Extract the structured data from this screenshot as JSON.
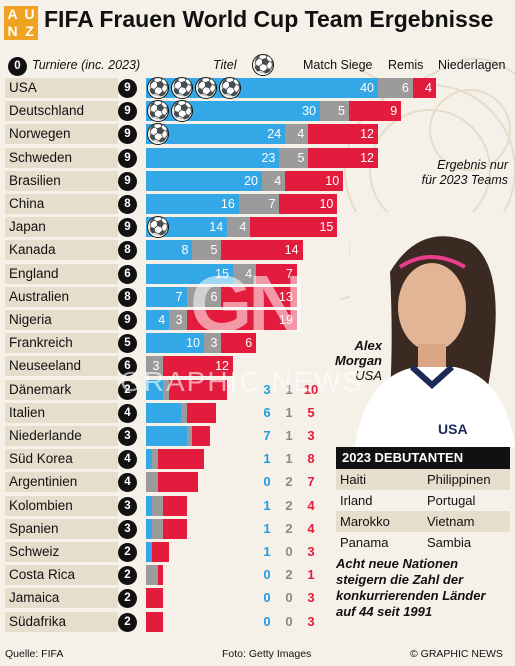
{
  "header": {
    "logo_letters": [
      "A",
      "U",
      "N",
      "Z"
    ],
    "title": "FIFA Frauen World Cup Team Ergebnisse"
  },
  "legend": {
    "tournaments_label": "Turniere (inc. 2023)",
    "tournaments_badge": "0",
    "titles_label": "Titel",
    "wins_label": "Match Siege",
    "draws_label": "Remis",
    "losses_label": "Niederlagen",
    "note_2023": "Ergebnis nur für 2023 Teams"
  },
  "colors": {
    "wins": "#34a8e6",
    "draws": "#9b9b9b",
    "losses": "#e31c3d"
  },
  "chart_data": {
    "type": "bar",
    "stacked": true,
    "orientation": "horizontal",
    "categories": [
      "USA",
      "Deutschland",
      "Norwegen",
      "Schweden",
      "Brasilien",
      "China",
      "Japan",
      "Kanada",
      "England",
      "Australien",
      "Nigeria",
      "Frankreich",
      "Neuseeland",
      "Dänemark",
      "Italien",
      "Niederlande",
      "Süd Korea",
      "Argentinien",
      "Kolombien",
      "Spanien",
      "Schweiz",
      "Costa Rica",
      "Jamaica",
      "Südafrika"
    ],
    "tournaments": [
      9,
      9,
      9,
      9,
      9,
      8,
      9,
      8,
      6,
      8,
      9,
      5,
      6,
      2,
      4,
      3,
      4,
      4,
      3,
      3,
      2,
      2,
      2,
      2
    ],
    "titles": [
      4,
      2,
      1,
      0,
      0,
      0,
      1,
      0,
      0,
      0,
      0,
      0,
      0,
      0,
      0,
      0,
      0,
      0,
      0,
      0,
      0,
      0,
      0,
      0
    ],
    "series": [
      {
        "name": "Match Siege",
        "values": [
          40,
          30,
          24,
          23,
          20,
          16,
          14,
          8,
          15,
          7,
          4,
          10,
          0,
          3,
          6,
          7,
          1,
          0,
          1,
          1,
          1,
          0,
          0,
          0
        ]
      },
      {
        "name": "Remis",
        "values": [
          6,
          5,
          4,
          5,
          4,
          7,
          4,
          5,
          4,
          6,
          3,
          3,
          3,
          1,
          1,
          1,
          1,
          2,
          2,
          2,
          0,
          2,
          0,
          0
        ]
      },
      {
        "name": "Niederlagen",
        "values": [
          4,
          9,
          12,
          12,
          10,
          10,
          15,
          14,
          7,
          13,
          19,
          6,
          12,
          10,
          5,
          3,
          8,
          7,
          4,
          4,
          3,
          1,
          3,
          3
        ]
      }
    ]
  },
  "photo": {
    "name": "Alex Morgan",
    "country": "USA",
    "jersey_text": "USA"
  },
  "debutants": {
    "title": "2023 DEBUTANTEN",
    "rows": [
      [
        "Haiti",
        "Philippinen"
      ],
      [
        "Irland",
        "Portugal"
      ],
      [
        "Marokko",
        "Vietnam"
      ],
      [
        "Panama",
        "Sambia"
      ]
    ],
    "note": "Acht neue Nationen steigern die Zahl der konkurrierenden Länder auf 44 seit 1991"
  },
  "watermark": {
    "logo": "GN",
    "text": "GRAPHIC NEWS"
  },
  "footer": {
    "source": "Quelle: FIFA",
    "photo": "Foto: Getty Images",
    "copyright": "© GRAPHIC NEWS"
  }
}
